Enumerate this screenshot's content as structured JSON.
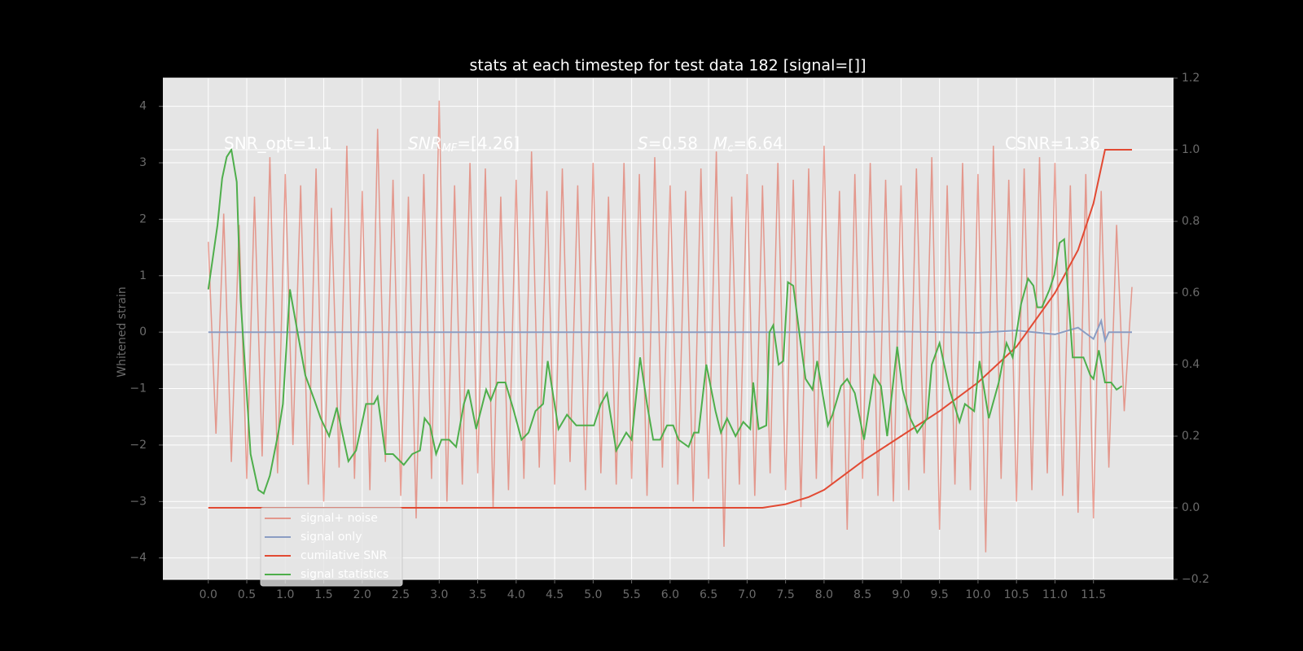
{
  "chart_data": {
    "type": "line",
    "title": "stats at each timestep for test data 182 [signal=[]]",
    "ylabel": "Whitened strain",
    "xlim": [
      -0.59,
      12.54
    ],
    "ylim": [
      -4.38,
      4.5
    ],
    "y2lim": [
      -0.2,
      1.2
    ],
    "xticks": [
      {
        "value": 0,
        "label": "0.0"
      },
      0.5,
      {
        "value": 1,
        "label": "1.0"
      },
      1.5,
      {
        "value": 2,
        "label": "2.0"
      },
      2.5,
      {
        "value": 3,
        "label": "3.0"
      },
      3.5,
      {
        "value": 4,
        "label": "4.0"
      },
      4.5,
      {
        "value": 5,
        "label": "5.0"
      },
      5.5,
      {
        "value": 6,
        "label": "6.0"
      },
      6.5,
      {
        "value": 7,
        "label": "7.0"
      },
      7.5,
      {
        "value": 8,
        "label": "8.0"
      },
      8.5,
      {
        "value": 9,
        "label": "9.0"
      },
      9.5,
      {
        "value": 10,
        "label": "10.0"
      },
      10.5,
      {
        "value": 11,
        "label": "11.0"
      },
      11.5
    ],
    "yticks": [
      {
        "value": -4,
        "label": "−4"
      },
      {
        "value": -3,
        "label": "−3"
      },
      {
        "value": -2,
        "label": "−2"
      },
      {
        "value": -1,
        "label": "−1"
      },
      0,
      1,
      2,
      3,
      4
    ],
    "y2ticks": [
      {
        "value": -0.2,
        "label": "−0.2"
      },
      {
        "value": 0,
        "label": "0.0"
      },
      0.2,
      0.4,
      0.6,
      0.8,
      {
        "value": 1,
        "label": "1.0"
      },
      1.2
    ],
    "grid": true,
    "legend": "lower left",
    "annotations": [
      {
        "main": "SNR_opt=1.1"
      },
      {
        "main": "SNR",
        "sub": "MF",
        "rest": "=[4.26]"
      },
      {
        "main": "S",
        "rest": "=0.58"
      },
      {
        "main": "M",
        "sub": "c",
        "rest": "=6.64"
      },
      {
        "main": "CSNR=1.36"
      }
    ],
    "series": [
      {
        "name": "signal+ noise",
        "color": "#e24a33",
        "x": [
          0,
          0.1,
          0.2,
          0.3,
          0.4,
          0.5,
          0.6,
          0.7,
          0.8,
          0.9,
          1,
          1.1,
          1.2,
          1.3,
          1.4,
          1.5,
          1.6,
          1.7,
          1.8,
          1.9,
          2,
          2.1,
          2.2,
          2.3,
          2.4,
          2.5,
          2.6,
          2.7,
          2.8,
          2.9,
          3,
          3.1,
          3.2,
          3.3,
          3.4,
          3.5,
          3.6,
          3.7,
          3.8,
          3.9,
          4,
          4.1,
          4.2,
          4.3,
          4.4,
          4.5,
          4.6,
          4.7,
          4.8,
          4.9,
          5,
          5.1,
          5.2,
          5.3,
          5.4,
          5.5,
          5.6,
          5.7,
          5.8,
          5.9,
          6,
          6.1,
          6.2,
          6.3,
          6.4,
          6.5,
          6.6,
          6.7,
          6.8,
          6.9,
          7,
          7.1,
          7.2,
          7.3,
          7.4,
          7.5,
          7.6,
          7.7,
          7.8,
          7.9,
          8,
          8.1,
          8.2,
          8.3,
          8.4,
          8.5,
          8.6,
          8.7,
          8.8,
          8.9,
          9,
          9.1,
          9.2,
          9.3,
          9.4,
          9.5,
          9.6,
          9.7,
          9.8,
          9.9,
          10,
          10.1,
          10.2,
          10.3,
          10.4,
          10.5,
          10.6,
          10.7,
          10.8,
          10.9,
          11,
          11.1,
          11.2,
          11.3,
          11.4,
          11.5,
          11.6,
          11.7,
          11.8,
          11.9,
          12
        ],
        "values": [
          1.6,
          -1.8,
          2.1,
          -2.3,
          1.9,
          -2.6,
          2.4,
          -2.2,
          3.1,
          -2.5,
          2.8,
          -2.0,
          2.6,
          -2.7,
          2.9,
          -3.0,
          2.2,
          -2.4,
          3.3,
          -2.6,
          2.5,
          -2.8,
          3.6,
          -2.3,
          2.7,
          -2.9,
          2.4,
          -3.3,
          2.8,
          -2.6,
          4.1,
          -3.0,
          2.6,
          -2.7,
          3.0,
          -2.5,
          2.9,
          -3.1,
          2.4,
          -2.8,
          2.7,
          -2.6,
          3.2,
          -2.4,
          2.5,
          -2.7,
          2.9,
          -2.3,
          2.6,
          -2.8,
          3.0,
          -2.5,
          2.4,
          -2.7,
          3.0,
          -2.6,
          2.8,
          -2.9,
          3.1,
          -2.4,
          2.6,
          -2.7,
          2.5,
          -3.0,
          2.9,
          -2.6,
          3.2,
          -3.8,
          2.4,
          -2.7,
          2.8,
          -2.9,
          2.6,
          -2.5,
          3.0,
          -2.8,
          2.7,
          -3.1,
          2.9,
          -2.6,
          3.3,
          -2.7,
          2.5,
          -3.5,
          2.8,
          -2.6,
          3.0,
          -2.9,
          2.7,
          -3.0,
          2.6,
          -2.8,
          2.9,
          -2.5,
          3.1,
          -3.5,
          2.6,
          -2.7,
          3.0,
          -2.8,
          2.8,
          -3.9,
          3.3,
          -2.6,
          2.7,
          -3.0,
          2.9,
          -2.8,
          3.1,
          -2.5,
          3.0,
          -2.9,
          2.6,
          -3.2,
          2.8,
          -3.3,
          2.5,
          -2.4,
          1.9,
          -1.4,
          0.8
        ]
      },
      {
        "name": "signal only",
        "color": "#8b9dc3",
        "x": [
          0,
          8,
          9,
          10,
          10.5,
          11,
          11.3,
          11.5,
          11.6,
          11.65,
          11.7,
          12
        ],
        "values": [
          0,
          0,
          0.01,
          -0.01,
          0.03,
          -0.04,
          0.08,
          -0.12,
          0.2,
          -0.15,
          0,
          0
        ]
      },
      {
        "name": "cumilative SNR",
        "color": "#e24a33",
        "axis": "y2",
        "x": [
          0,
          7.2,
          7.5,
          7.8,
          8,
          8.5,
          9,
          9.5,
          10,
          10.5,
          11,
          11.3,
          11.5,
          11.65,
          11.7,
          12
        ],
        "values": [
          0,
          0,
          0.01,
          0.03,
          0.05,
          0.13,
          0.2,
          0.27,
          0.35,
          0.45,
          0.6,
          0.72,
          0.85,
          1.0,
          1.0,
          1.0
        ]
      },
      {
        "name": "signal statistics",
        "color": "#4eae4b",
        "axis": "y2",
        "x": [
          0,
          0.12,
          0.18,
          0.24,
          0.3,
          0.37,
          0.42,
          0.49,
          0.55,
          0.65,
          0.72,
          0.8,
          0.91,
          0.97,
          1.06,
          1.16,
          1.26,
          1.38,
          1.46,
          1.57,
          1.67,
          1.82,
          1.92,
          2.05,
          2.15,
          2.2,
          2.3,
          2.4,
          2.54,
          2.65,
          2.75,
          2.81,
          2.88,
          2.96,
          3.03,
          3.13,
          3.22,
          3.32,
          3.38,
          3.48,
          3.61,
          3.67,
          3.76,
          3.86,
          3.97,
          4.07,
          4.16,
          4.25,
          4.35,
          4.41,
          4.55,
          4.66,
          4.78,
          4.87,
          5.01,
          5.1,
          5.18,
          5.3,
          5.43,
          5.5,
          5.61,
          5.7,
          5.78,
          5.87,
          5.96,
          6.04,
          6.11,
          6.24,
          6.31,
          6.37,
          6.47,
          6.59,
          6.66,
          6.74,
          6.85,
          6.95,
          7.04,
          7.08,
          7.15,
          7.25,
          7.29,
          7.34,
          7.41,
          7.47,
          7.53,
          7.6,
          7.69,
          7.76,
          7.85,
          7.91,
          8.05,
          8.11,
          8.22,
          8.3,
          8.4,
          8.52,
          8.65,
          8.74,
          8.82,
          8.95,
          9.02,
          9.12,
          9.21,
          9.34,
          9.4,
          9.5,
          9.63,
          9.76,
          9.83,
          9.95,
          10.02,
          10.14,
          10.27,
          10.37,
          10.45,
          10.56,
          10.65,
          10.72,
          10.77,
          10.83,
          10.93,
          10.99,
          11.06,
          11.12,
          11.23,
          11.37,
          11.46,
          11.5,
          11.57,
          11.65,
          11.73,
          11.8,
          11.87
        ],
        "values": [
          0.61,
          0.79,
          0.92,
          0.98,
          1.0,
          0.91,
          0.58,
          0.35,
          0.15,
          0.05,
          0.04,
          0.09,
          0.21,
          0.29,
          0.61,
          0.49,
          0.37,
          0.3,
          0.25,
          0.2,
          0.28,
          0.13,
          0.16,
          0.29,
          0.29,
          0.31,
          0.15,
          0.15,
          0.12,
          0.15,
          0.16,
          0.25,
          0.23,
          0.15,
          0.19,
          0.19,
          0.17,
          0.29,
          0.33,
          0.22,
          0.33,
          0.3,
          0.35,
          0.35,
          0.27,
          0.19,
          0.21,
          0.27,
          0.29,
          0.41,
          0.22,
          0.26,
          0.23,
          0.23,
          0.23,
          0.29,
          0.32,
          0.16,
          0.21,
          0.19,
          0.42,
          0.29,
          0.19,
          0.19,
          0.23,
          0.23,
          0.19,
          0.17,
          0.21,
          0.21,
          0.4,
          0.27,
          0.21,
          0.25,
          0.2,
          0.24,
          0.22,
          0.35,
          0.22,
          0.23,
          0.49,
          0.51,
          0.4,
          0.41,
          0.63,
          0.62,
          0.47,
          0.36,
          0.33,
          0.41,
          0.23,
          0.26,
          0.34,
          0.36,
          0.32,
          0.19,
          0.37,
          0.34,
          0.2,
          0.45,
          0.33,
          0.25,
          0.21,
          0.25,
          0.4,
          0.46,
          0.33,
          0.24,
          0.29,
          0.27,
          0.41,
          0.25,
          0.35,
          0.46,
          0.42,
          0.57,
          0.64,
          0.62,
          0.56,
          0.56,
          0.61,
          0.65,
          0.74,
          0.75,
          0.42,
          0.42,
          0.37,
          0.36,
          0.44,
          0.35,
          0.35,
          0.33,
          0.34
        ]
      }
    ]
  }
}
